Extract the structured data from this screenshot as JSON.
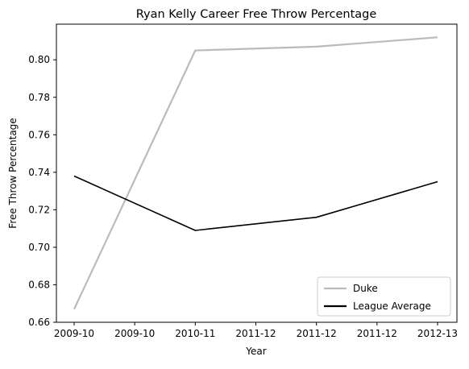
{
  "chart_data": {
    "type": "line",
    "title": "Ryan Kelly  Career Free Throw Percentage",
    "xlabel": "Year",
    "ylabel": "Free Throw Percentage",
    "x_tick_labels": [
      "2009-10",
      "2009-10",
      "2010-11",
      "2011-12",
      "2011-12",
      "2011-12",
      "2012-13"
    ],
    "x": [
      0,
      1,
      2,
      3
    ],
    "y_ticks": [
      "0.66",
      "0.68",
      "0.70",
      "0.72",
      "0.74",
      "0.76",
      "0.78",
      "0.80"
    ],
    "ylim": [
      0.66,
      0.819
    ],
    "series": [
      {
        "name": "Duke",
        "color": "#bbbbbb",
        "values": [
          0.667,
          0.805,
          0.807,
          0.812
        ]
      },
      {
        "name": "League Average",
        "color": "#000000",
        "values": [
          0.738,
          0.709,
          0.716,
          0.735
        ]
      }
    ],
    "legend_position": "lower-right",
    "grid": false
  }
}
